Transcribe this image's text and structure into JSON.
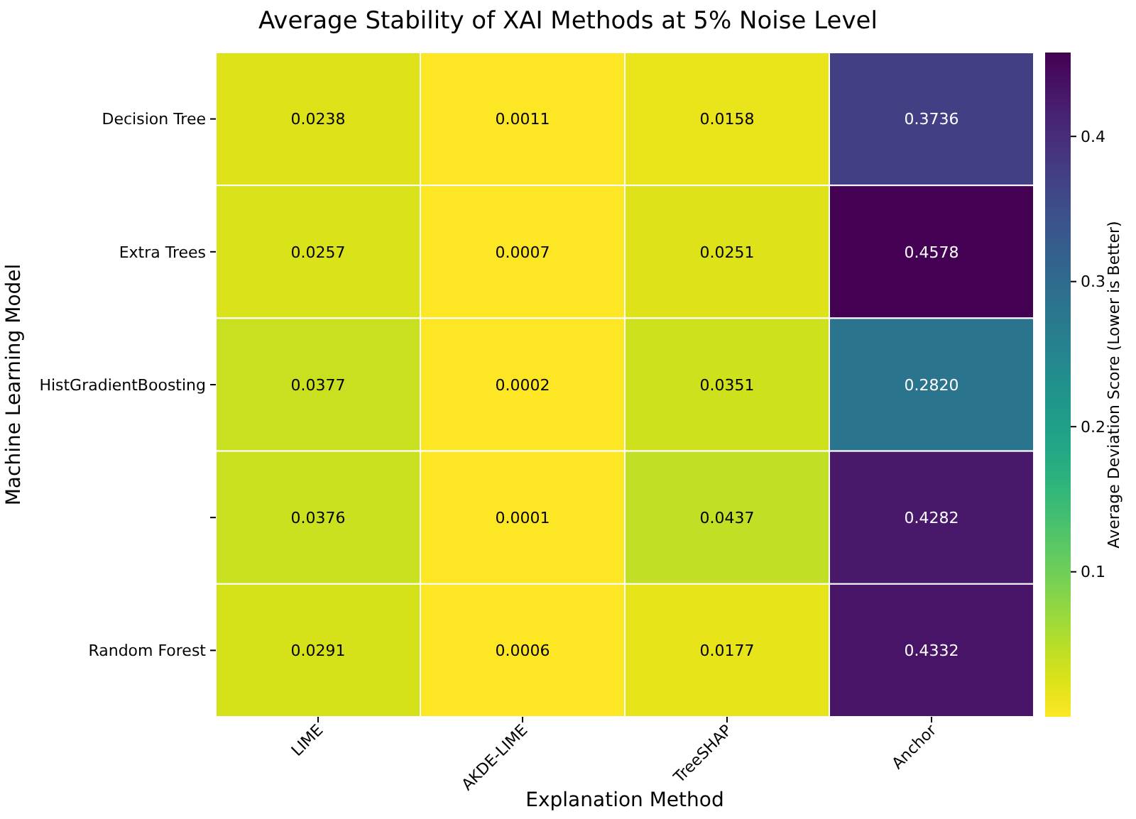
{
  "chart_data": {
    "type": "heatmap",
    "title": "Average Stability of XAI Methods at 5% Noise Level",
    "xlabel": "Explanation Method",
    "ylabel": "Machine Learning Model",
    "clabel": "Average Deviation Score (Lower is Better)",
    "categories": [
      "LIME",
      "AKDE-LIME",
      "TreeSHAP",
      "Anchor"
    ],
    "y_categories": [
      "Decision Tree",
      "Extra Trees",
      "HistGradientBoosting",
      null,
      "Random Forest"
    ],
    "cells": [
      [
        0.0238,
        0.0011,
        0.0158,
        0.3736
      ],
      [
        0.0257,
        0.0007,
        0.0251,
        0.4578
      ],
      [
        0.0377,
        0.0002,
        0.0351,
        0.282
      ],
      [
        0.0376,
        0.0001,
        0.0437,
        0.4282
      ],
      [
        0.0291,
        0.0006,
        0.0177,
        0.4332
      ]
    ],
    "cell_labels": [
      [
        "0.0238",
        "0.0011",
        "0.0158",
        "0.3736"
      ],
      [
        "0.0257",
        "0.0007",
        "0.0251",
        "0.4578"
      ],
      [
        "0.0377",
        "0.0002",
        "0.0351",
        "0.2820"
      ],
      [
        "0.0376",
        "0.0001",
        "0.0437",
        "0.4282"
      ],
      [
        "0.0291",
        "0.0006",
        "0.0177",
        "0.4332"
      ]
    ],
    "clim": [
      0.0001,
      0.4578
    ],
    "cticks": [
      0.1,
      0.2,
      0.3,
      0.4
    ]
  }
}
